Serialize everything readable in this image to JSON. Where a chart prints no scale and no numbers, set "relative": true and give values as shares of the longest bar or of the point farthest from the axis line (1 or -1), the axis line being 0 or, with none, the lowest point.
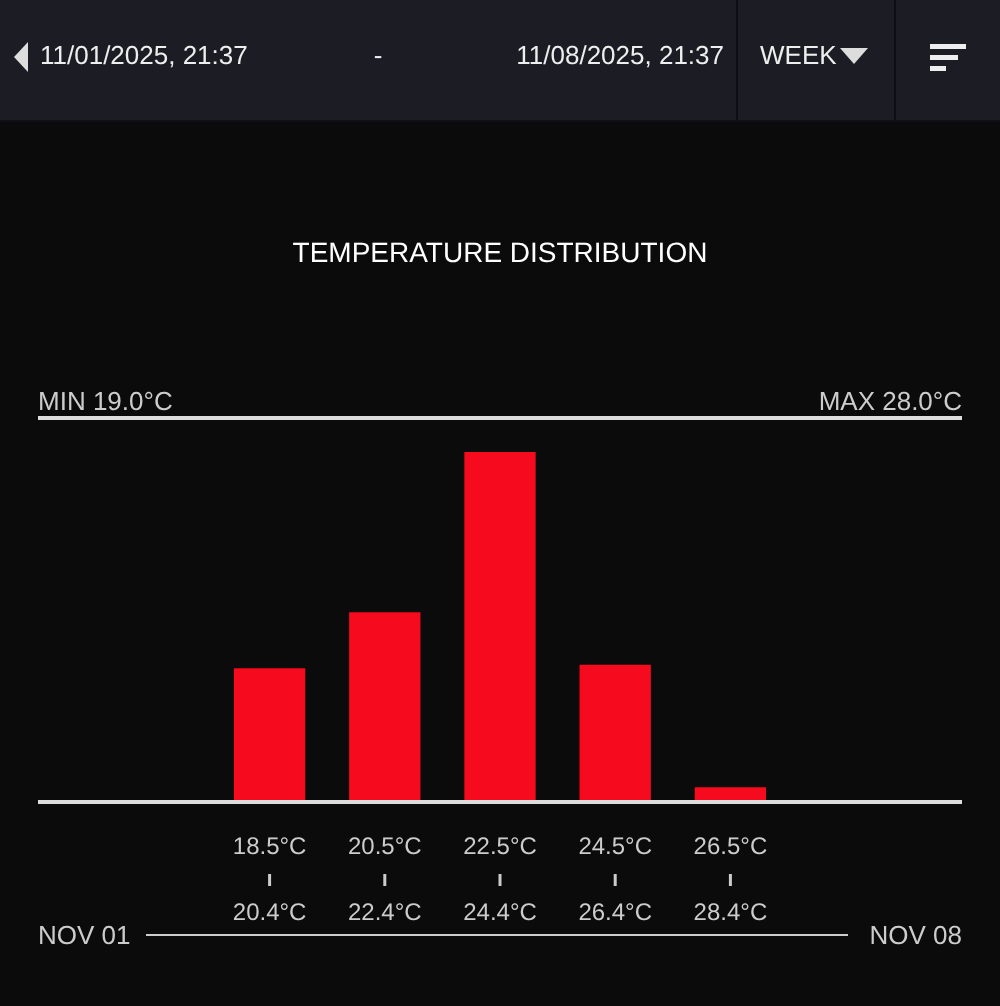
{
  "chart_data": {
    "type": "bar",
    "title": "TEMPERATURE DISTRIBUTION",
    "categories": [
      "18.5°C\n20.4°C",
      "20.5°C\n22.4°C",
      "22.5°C\n24.4°C",
      "24.5°C\n26.4°C",
      "26.5°C\n28.4°C"
    ],
    "values": [
      0.38,
      0.54,
      1,
      0.39,
      0.04
    ],
    "color": "#f50a1e",
    "relative": true,
    "annotations": [
      "11/01/2025, 21:37",
      "-",
      "11/08/2025, 21:37",
      "WEEK",
      "MIN 19.0°C",
      "MAX 28.0°C",
      "NOV 01",
      "NOV 08"
    ]
  }
}
